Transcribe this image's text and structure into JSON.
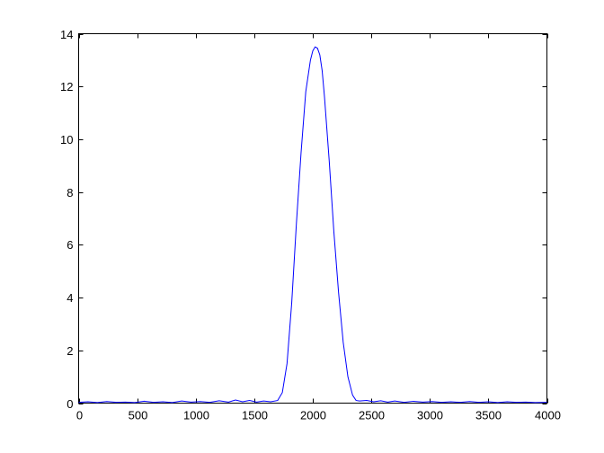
{
  "chart_data": {
    "type": "line",
    "title": "",
    "xlabel": "",
    "ylabel": "",
    "xlim": [
      0,
      4000
    ],
    "ylim": [
      0,
      14
    ],
    "xticks": [
      0,
      500,
      1000,
      1500,
      2000,
      2500,
      3000,
      3500,
      4000
    ],
    "yticks": [
      0,
      2,
      4,
      6,
      8,
      10,
      12,
      14
    ],
    "xtick_labels": [
      "0",
      "500",
      "1000",
      "1500",
      "2000",
      "2500",
      "3000",
      "3500",
      "4000"
    ],
    "ytick_labels": [
      "0",
      "2",
      "4",
      "6",
      "8",
      "10",
      "12",
      "14"
    ],
    "grid": false,
    "series": [
      {
        "color": "#0000ff",
        "x": [
          0,
          80,
          160,
          240,
          320,
          400,
          480,
          560,
          640,
          720,
          800,
          880,
          960,
          1040,
          1120,
          1200,
          1280,
          1340,
          1400,
          1460,
          1520,
          1580,
          1640,
          1700,
          1740,
          1780,
          1820,
          1860,
          1900,
          1940,
          1980,
          2000,
          2020,
          2040,
          2060,
          2080,
          2100,
          2140,
          2180,
          2220,
          2260,
          2300,
          2340,
          2370,
          2400,
          2460,
          2520,
          2580,
          2640,
          2700,
          2780,
          2860,
          2940,
          3020,
          3100,
          3180,
          3260,
          3340,
          3420,
          3500,
          3580,
          3660,
          3740,
          3820,
          3900,
          4000
        ],
        "y": [
          0.03,
          0.05,
          0.02,
          0.06,
          0.03,
          0.04,
          0.02,
          0.07,
          0.03,
          0.05,
          0.02,
          0.08,
          0.04,
          0.06,
          0.03,
          0.09,
          0.04,
          0.12,
          0.05,
          0.1,
          0.04,
          0.08,
          0.05,
          0.1,
          0.4,
          1.5,
          3.8,
          6.8,
          9.5,
          11.8,
          13.0,
          13.35,
          13.5,
          13.45,
          13.2,
          12.6,
          11.6,
          9.2,
          6.5,
          4.2,
          2.3,
          1.0,
          0.3,
          0.1,
          0.08,
          0.1,
          0.05,
          0.09,
          0.04,
          0.08,
          0.03,
          0.07,
          0.04,
          0.06,
          0.03,
          0.05,
          0.03,
          0.06,
          0.03,
          0.05,
          0.02,
          0.05,
          0.03,
          0.04,
          0.02,
          0.03
        ]
      }
    ]
  }
}
